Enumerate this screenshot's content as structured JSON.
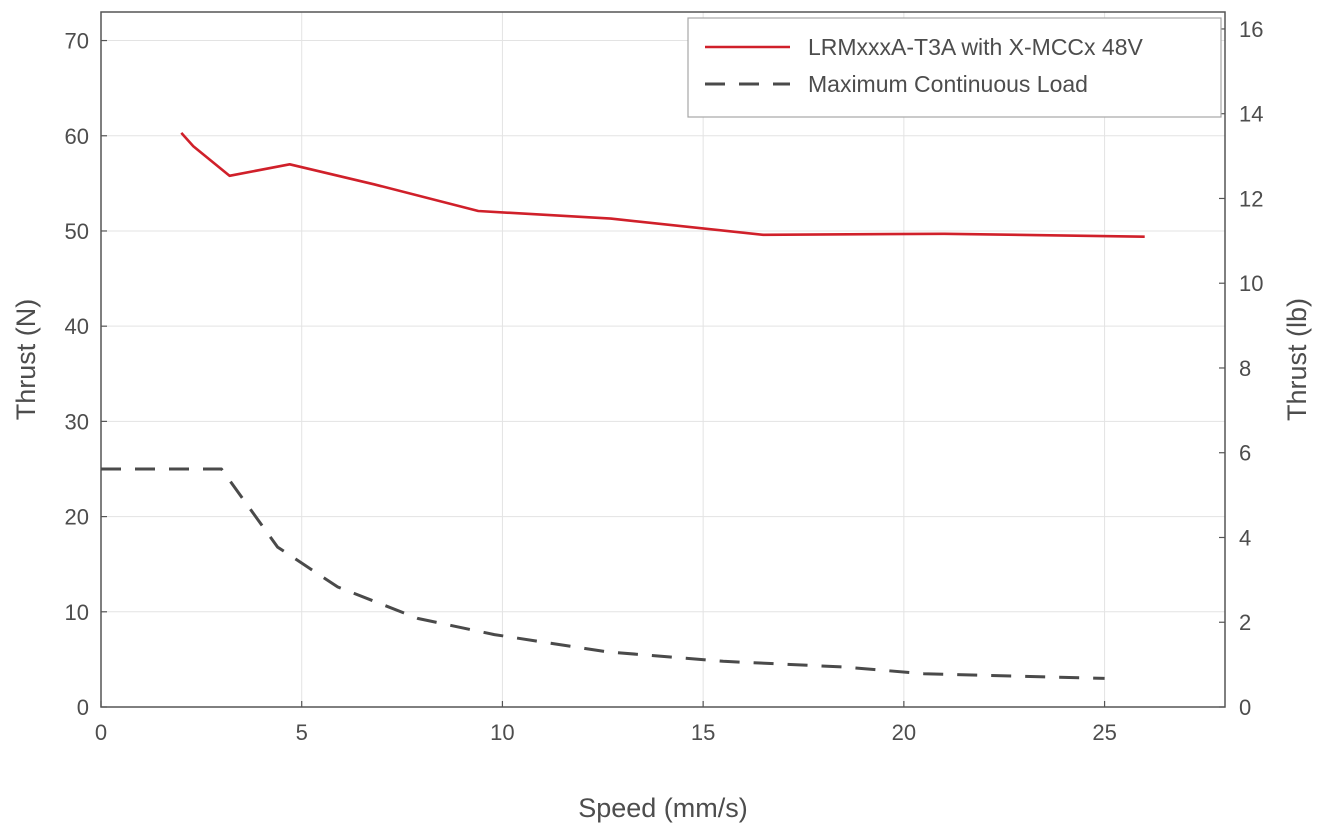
{
  "chart_data": {
    "type": "line",
    "title": "",
    "xlabel": "Speed (mm/s)",
    "ylabel": "Thrust (N)",
    "ylabel_right": "Thrust (lb)",
    "xlim": [
      0,
      28
    ],
    "ylim": [
      0,
      73
    ],
    "ylim_right": [
      0,
      16.4
    ],
    "x_ticks": [
      0,
      5,
      10,
      15,
      20,
      25
    ],
    "y_ticks": [
      0,
      10,
      20,
      30,
      40,
      50,
      60,
      70
    ],
    "y_ticks_right": [
      0,
      2,
      4,
      6,
      8,
      10,
      12,
      14,
      16
    ],
    "grid": true,
    "legend_position": "top-right",
    "series": [
      {
        "name": "LRMxxxA-T3A with X-MCCx 48V",
        "color": "#d0202a",
        "style": "solid",
        "points": [
          [
            2.0,
            60.3
          ],
          [
            2.3,
            58.9
          ],
          [
            3.2,
            55.8
          ],
          [
            4.7,
            57.0
          ],
          [
            6.8,
            54.9
          ],
          [
            9.4,
            52.1
          ],
          [
            12.7,
            51.3
          ],
          [
            16.5,
            49.6
          ],
          [
            21.0,
            49.7
          ],
          [
            26.0,
            49.4
          ]
        ]
      },
      {
        "name": "Maximum Continuous Load",
        "color": "#4a4a4a",
        "style": "dashed",
        "points": [
          [
            0,
            25.0
          ],
          [
            3.0,
            25.0
          ],
          [
            4.4,
            16.8
          ],
          [
            5.9,
            12.6
          ],
          [
            7.9,
            9.3
          ],
          [
            9.8,
            7.6
          ],
          [
            12.6,
            5.8
          ],
          [
            15.5,
            4.8
          ],
          [
            18.5,
            4.2
          ],
          [
            20.5,
            3.5
          ],
          [
            25.0,
            3.0
          ]
        ]
      }
    ]
  }
}
